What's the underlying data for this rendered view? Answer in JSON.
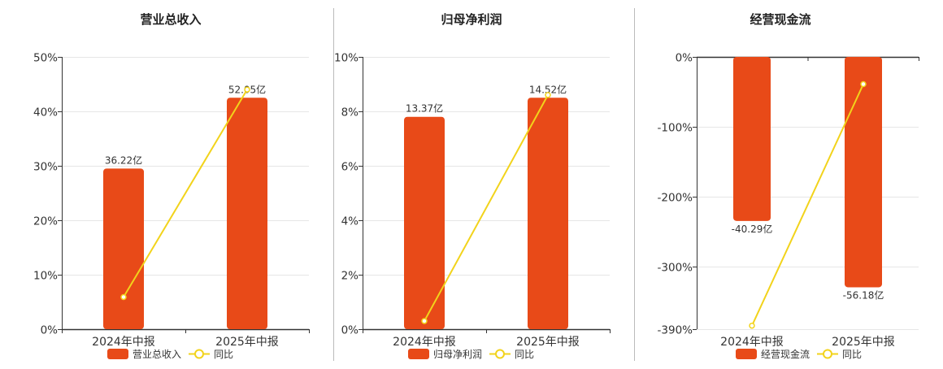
{
  "colors": {
    "bar": "#E84A18",
    "line": "#F2D31B",
    "axis": "#333333",
    "grid": "#E6E6E6",
    "divider": "#BBBBBB",
    "text": "#333333",
    "title": "#222222"
  },
  "chart_data": [
    {
      "type": "bar",
      "title": "营业总收入",
      "categories": [
        "2024年中报",
        "2025年中报"
      ],
      "series": [
        {
          "name": "营业总收入",
          "type": "bar",
          "values": [
            29.5,
            42.5
          ],
          "labels": [
            "36.22亿",
            "52.05亿"
          ]
        },
        {
          "name": "同比",
          "type": "line",
          "values": [
            5.9,
            44.0
          ]
        }
      ],
      "y_ticks": [
        "0%",
        "10%",
        "20%",
        "30%",
        "40%",
        "50%"
      ],
      "ylim": [
        0,
        50
      ],
      "grid": true,
      "legend": "bottom-center"
    },
    {
      "type": "bar",
      "title": "归母净利润",
      "categories": [
        "2024年中报",
        "2025年中报"
      ],
      "series": [
        {
          "name": "归母净利润",
          "type": "bar",
          "values": [
            7.8,
            8.5
          ],
          "labels": [
            "13.37亿",
            "14.52亿"
          ]
        },
        {
          "name": "同比",
          "type": "line",
          "values": [
            0.3,
            8.6
          ]
        }
      ],
      "y_ticks": [
        "0%",
        "2%",
        "4%",
        "6%",
        "8%",
        "10%"
      ],
      "ylim": [
        0,
        10
      ],
      "grid": true,
      "legend": "bottom-center"
    },
    {
      "type": "bar",
      "title": "经营现金流",
      "categories": [
        "2024年中报",
        "2025年中报"
      ],
      "series": [
        {
          "name": "经营现金流",
          "type": "bar",
          "values": [
            -235,
            -330
          ],
          "labels": [
            "-40.29亿",
            "-56.18亿"
          ]
        },
        {
          "name": "同比",
          "type": "line",
          "values": [
            -385,
            -39
          ]
        }
      ],
      "y_ticks": [
        "0%",
        "-100%",
        "-200%",
        "-300%",
        "-390%"
      ],
      "y_tick_values": [
        0,
        -100,
        -200,
        -300,
        -390
      ],
      "ylim": [
        -390,
        0
      ],
      "grid": true,
      "legend": "bottom-center"
    }
  ]
}
